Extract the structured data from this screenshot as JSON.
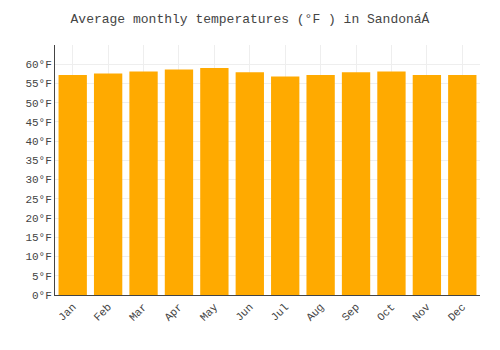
{
  "chart_data": {
    "type": "bar",
    "title": "Average monthly temperatures (°F ) in SandonáÁ",
    "categories": [
      "Jan",
      "Feb",
      "Mar",
      "Apr",
      "May",
      "Jun",
      "Jul",
      "Aug",
      "Sep",
      "Oct",
      "Nov",
      "Dec"
    ],
    "values": [
      57.2,
      57.6,
      58.1,
      58.6,
      59.0,
      57.9,
      56.8,
      57.2,
      57.9,
      58.1,
      57.2,
      57.2
    ],
    "color": "#FFAA00",
    "ylim": [
      0,
      65
    ],
    "yticks": [
      {
        "value": 0,
        "label": "0°F"
      },
      {
        "value": 5,
        "label": "5°F"
      },
      {
        "value": 10,
        "label": "10°F"
      },
      {
        "value": 15,
        "label": "15°F"
      },
      {
        "value": 20,
        "label": "20°F"
      },
      {
        "value": 25,
        "label": "25°F"
      },
      {
        "value": 30,
        "label": "30°F"
      },
      {
        "value": 35,
        "label": "35°F"
      },
      {
        "value": 40,
        "label": "40°F"
      },
      {
        "value": 45,
        "label": "45°F"
      },
      {
        "value": 50,
        "label": "50°F"
      },
      {
        "value": 55,
        "label": "55°F"
      },
      {
        "value": 60,
        "label": "60°F"
      }
    ],
    "grid": true
  }
}
